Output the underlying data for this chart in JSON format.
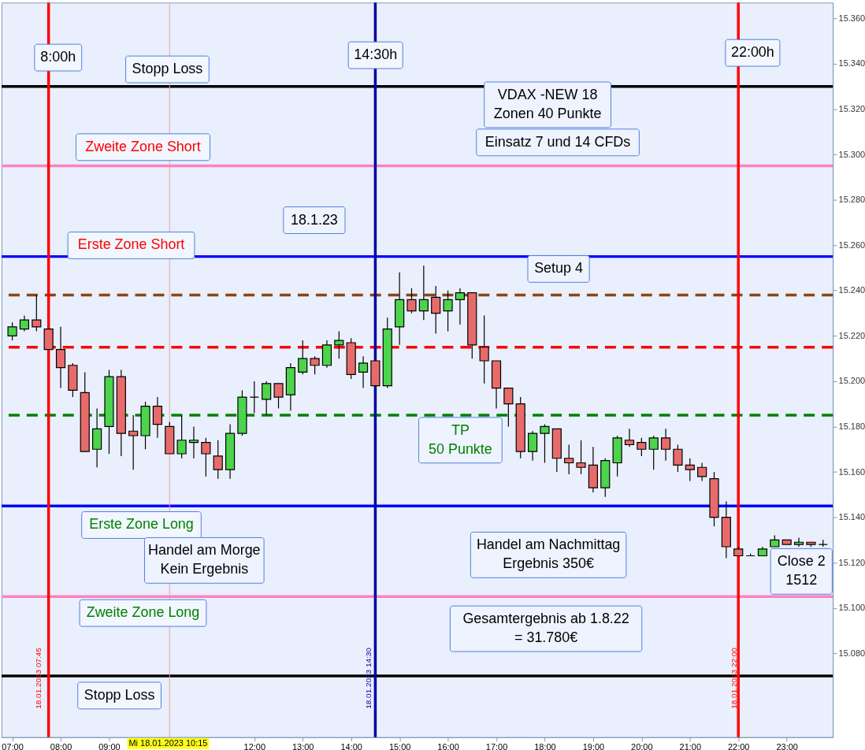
{
  "chart_data": {
    "type": "candlestick",
    "x": [
      7,
      7.25,
      7.5,
      7.75,
      8,
      8.25,
      8.5,
      8.75,
      9,
      9.25,
      9.5,
      9.75,
      10,
      10.25,
      10.5,
      10.75,
      11,
      11.25,
      11.5,
      11.75,
      12,
      12.25,
      12.5,
      12.75,
      13,
      13.25,
      13.5,
      13.75,
      14,
      14.25,
      14.5,
      14.75,
      15,
      15.25,
      15.5,
      15.75,
      16,
      16.25,
      16.5,
      16.75,
      17,
      17.25,
      17.5,
      17.75,
      18,
      18.25,
      18.5,
      18.75,
      19,
      19.25,
      19.5,
      19.75,
      20,
      20.25,
      20.5,
      20.75,
      21,
      21.25,
      21.5,
      21.75,
      22,
      22.25,
      22.5,
      22.75,
      23,
      23.25,
      23.5,
      23.75
    ],
    "ohlc": [
      [
        15220,
        15226,
        15218,
        15224
      ],
      [
        15223,
        15229,
        15222,
        15227
      ],
      [
        15227,
        15238,
        15222,
        15224
      ],
      [
        15223,
        15223,
        15214,
        15214
      ],
      [
        15214,
        15224,
        15197,
        15206
      ],
      [
        15207,
        15208,
        15193,
        15196
      ],
      [
        15195,
        15204,
        15169,
        15169
      ],
      [
        15170,
        15188,
        15162,
        15179
      ],
      [
        15180,
        15205,
        15168,
        15202
      ],
      [
        15202,
        15205,
        15167,
        15177
      ],
      [
        15178,
        15185,
        15161,
        15176
      ],
      [
        15176,
        15191,
        15170,
        15189
      ],
      [
        15189,
        15193,
        15175,
        15181
      ],
      [
        15180,
        15182,
        15168,
        15168
      ],
      [
        15168,
        15185,
        15166,
        15174
      ],
      [
        15173,
        15180,
        15166,
        15174
      ],
      [
        15173,
        15175,
        15158,
        15168
      ],
      [
        15167,
        15174,
        15157,
        15161
      ],
      [
        15161,
        15181,
        15157,
        15177
      ],
      [
        15177,
        15196,
        15176,
        15193
      ],
      [
        15193,
        15200,
        15186,
        15193
      ],
      [
        15192,
        15200,
        15185,
        15199
      ],
      [
        15199,
        15199,
        15188,
        15193
      ],
      [
        15194,
        15208,
        15187,
        15206
      ],
      [
        15204,
        15218,
        15203,
        15210
      ],
      [
        15210,
        15211,
        15203,
        15207
      ],
      [
        15207,
        15218,
        15206,
        15216
      ],
      [
        15216,
        15222,
        15210,
        15218
      ],
      [
        15217,
        15219,
        15201,
        15203
      ],
      [
        15204,
        15211,
        15197,
        15208
      ],
      [
        15209,
        15209,
        15198,
        15198
      ],
      [
        15198,
        15228,
        15197,
        15223
      ],
      [
        15224,
        15248,
        15216,
        15236
      ],
      [
        15236,
        15241,
        15230,
        15231
      ],
      [
        15231,
        15251,
        15227,
        15236
      ],
      [
        15237,
        15242,
        15221,
        15230
      ],
      [
        15231,
        15240,
        15222,
        15236
      ],
      [
        15236,
        15241,
        15225,
        15239
      ],
      [
        15239,
        15239,
        15210,
        15216
      ],
      [
        15215,
        15229,
        15199,
        15209
      ],
      [
        15209,
        15209,
        15188,
        15197
      ],
      [
        15197,
        15197,
        15180,
        15190
      ],
      [
        15190,
        15193,
        15166,
        15169
      ],
      [
        15169,
        15178,
        15165,
        15177
      ],
      [
        15177,
        15181,
        15164,
        15180
      ],
      [
        15179,
        15179,
        15160,
        15166
      ],
      [
        15166,
        15172,
        15159,
        15164
      ],
      [
        15164,
        15174,
        15159,
        15162
      ],
      [
        15163,
        15171,
        15151,
        15153
      ],
      [
        15153,
        15166,
        15149,
        15165
      ],
      [
        15164,
        15176,
        15158,
        15175
      ],
      [
        15174,
        15179,
        15171,
        15172
      ],
      [
        15173,
        15175,
        15167,
        15170
      ],
      [
        15170,
        15176,
        15161,
        15175
      ],
      [
        15175,
        15179,
        15165,
        15170
      ],
      [
        15170,
        15172,
        15160,
        15163
      ],
      [
        15163,
        15166,
        15156,
        15161
      ],
      [
        15162,
        15164,
        15156,
        15158
      ],
      [
        15157,
        15160,
        15136,
        15140
      ],
      [
        15140,
        15147,
        15122,
        15127
      ],
      [
        15126,
        15127,
        15123,
        15123
      ],
      [
        15123,
        15124,
        15123,
        15123
      ],
      [
        15123,
        15127,
        15123,
        15126
      ],
      [
        15127,
        15132,
        15127,
        15130
      ],
      [
        15130,
        15130,
        15128,
        15128
      ],
      [
        15128,
        15131,
        15127,
        15129
      ],
      [
        15129,
        15129,
        15127,
        15128
      ],
      [
        15128,
        15130,
        15127,
        15128
      ]
    ],
    "xlim": [
      6.86,
      23.87
    ],
    "xticks": [
      {
        "value": 7,
        "label": "07:00"
      },
      {
        "value": 8,
        "label": "08:00"
      },
      {
        "value": 9,
        "label": "09:00"
      },
      {
        "value": 10,
        "label": null
      },
      {
        "value": 11,
        "label": null
      },
      {
        "value": 12,
        "label": "12:00"
      },
      {
        "value": 13,
        "label": "13:00"
      },
      {
        "value": 14,
        "label": "14:00"
      },
      {
        "value": 15,
        "label": "15:00"
      },
      {
        "value": 16,
        "label": "16:00"
      },
      {
        "value": 17,
        "label": "17:00"
      },
      {
        "value": 18,
        "label": "18:00"
      },
      {
        "value": 19,
        "label": "19:00"
      },
      {
        "value": 20,
        "label": "20:00"
      },
      {
        "value": 21,
        "label": "21:00"
      },
      {
        "value": 22,
        "label": "22:00"
      },
      {
        "value": 23,
        "label": "23:00"
      }
    ],
    "ylim": [
      15043,
      15367
    ],
    "yticks": [
      {
        "value": 15080,
        "label": "15.080"
      },
      {
        "value": 15100,
        "label": "15.100"
      },
      {
        "value": 15120,
        "label": "15.120"
      },
      {
        "value": 15140,
        "label": "15.140"
      },
      {
        "value": 15160,
        "label": "15.160"
      },
      {
        "value": 15180,
        "label": "15.180"
      },
      {
        "value": 15200,
        "label": "15.200"
      },
      {
        "value": 15220,
        "label": "15.220"
      },
      {
        "value": 15240,
        "label": "15.240"
      },
      {
        "value": 15260,
        "label": "15.260"
      },
      {
        "value": 15280,
        "label": "15.280"
      },
      {
        "value": 15300,
        "label": "15.300"
      },
      {
        "value": 15320,
        "label": "15.320"
      },
      {
        "value": 15340,
        "label": "15.340"
      },
      {
        "value": 15360,
        "label": "15.360"
      }
    ],
    "grid": false,
    "ref_lines": [
      {
        "axis": "y",
        "value": 15330,
        "label": "Stopp Loss",
        "color": "#000000",
        "line_style": "solid"
      },
      {
        "axis": "y",
        "value": 15295,
        "label": "Zweite Zone Short",
        "color": "#ff80c0",
        "line_style": "solid"
      },
      {
        "axis": "y",
        "value": 15255,
        "label": "Erste Zone Short",
        "color": "#0000ff",
        "line_style": "solid"
      },
      {
        "axis": "y",
        "value": 15215,
        "label": null,
        "color": "#ff0000",
        "line_style": "dashed"
      },
      {
        "axis": "y",
        "value": 15238,
        "label": null,
        "color": "#8b4513",
        "line_style": "dashed"
      },
      {
        "axis": "y",
        "value": 15185,
        "label": null,
        "color": "#008000",
        "line_style": "dashed"
      },
      {
        "axis": "y",
        "value": 15145,
        "label": "Erste Zone Long",
        "color": "#0000ff",
        "line_style": "solid"
      },
      {
        "axis": "y",
        "value": 15105,
        "label": "Zweite Zone Long",
        "color": "#ff80c0",
        "line_style": "solid"
      },
      {
        "axis": "y",
        "value": 15070,
        "label": "Stopp Loss",
        "color": "#000000",
        "line_style": "solid"
      },
      {
        "axis": "x",
        "value": 7.75,
        "label": "8:00h",
        "color": "#ff0000",
        "line_style": "solid"
      },
      {
        "axis": "x",
        "value": 14.5,
        "label": "14:30h",
        "color": "#0000a0",
        "line_style": "solid"
      },
      {
        "axis": "x",
        "value": 22,
        "label": "22:00h",
        "color": "#ff0000",
        "line_style": "solid"
      },
      {
        "axis": "x",
        "value": 10.25,
        "label": "Mi 18.01.2023 10:15",
        "color": "#f0a0a0",
        "line_style": "solid"
      }
    ],
    "annotations": [
      "18.1.23",
      "VDAX -NEW 18\nZonen 40  Punkte",
      "Einsatz 7 und 14 CFDs",
      "Setup 4",
      "TP\n50  Punkte",
      "Handel am Morge\nKein Ergebnis",
      "Handel am Nachmittag\nErgebnis 350€",
      "Gesamtergebnis  ab 1.8.22\n= 31.780€",
      "Close 2\n1512",
      "18.01.2023 07:45",
      "18.01.2023 14:30",
      "18.01.2023 22:00"
    ]
  }
}
